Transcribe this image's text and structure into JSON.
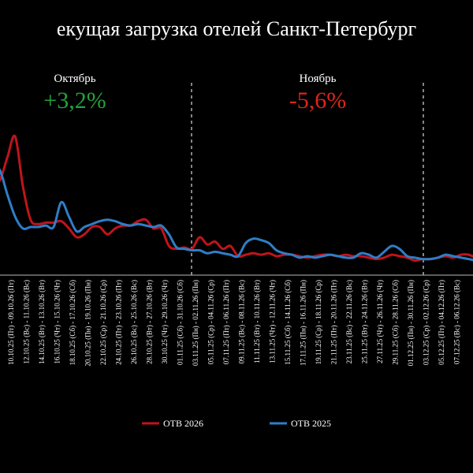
{
  "chart_data": {
    "type": "line",
    "title": "екущая загрузка отелей Санкт-Петербург",
    "xlabel": "",
    "ylabel": "",
    "ylim": [
      0,
      120
    ],
    "grid": false,
    "legend_position": "bottom",
    "annotations": [
      {
        "label": "Октябрь",
        "delta": "+3,2%",
        "color": "#22a33a"
      },
      {
        "label": "Ноябрь",
        "delta": "-5,6%",
        "color": "#e0241b"
      }
    ],
    "x_ticks": [
      "10.10.25 (Пт) - 09.10.26 (Пт)",
      "12.10.25 (Вс) - 11.10.26 (Вс)",
      "14.10.25 (Вт) - 13.10.26 (Вт)",
      "16.10.25 (Чт) - 15.10.26 (Чт)",
      "18.10.25 (Сб) - 17.10.26 (Сб)",
      "20.10.25 (Пн) - 19.10.26 (Пн)",
      "22.10.25 (Ср) - 21.10.26 (Ср)",
      "24.10.25 (Пт) - 23.10.26 (Пт)",
      "26.10.25 (Вс) - 25.10.26 (Вс)",
      "28.10.25 (Вт) - 27.10.26 (Вт)",
      "30.10.25 (Чт) - 29.10.26 (Чт)",
      "01.11.25 (Сб) - 31.10.26 (Сб)",
      "03.11.25 (Пн) - 02.11.26 (Пн)",
      "05.11.25 (Ср) - 04.11.26 (Ср)",
      "07.11.25 (Пт) - 06.11.26 (Пт)",
      "09.11.25 (Вс) - 08.11.26 (Вс)",
      "11.11.25 (Вт) - 10.11.26 (Вт)",
      "13.11.25 (Чт) - 12.11.26 (Чт)",
      "15.11.25 (Сб) - 14.11.26 (Сб)",
      "17.11.25 (Пн) - 16.11.26 (Пн)",
      "19.11.25 (Ср) - 18.11.26 (Ср)",
      "21.11.25 (Пт) - 20.11.26 (Пт)",
      "23.11.25 (Вс) - 22.11.26 (Вс)",
      "25.11.25 (Вт) - 24.11.26 (Вт)",
      "27.11.25 (Чт) - 26.11.26 (Чт)",
      "29.11.25 (Сб) - 28.11.26 (Сб)",
      "01.12.25 (Пн) - 30.11.26 (Пн)",
      "03.12.25 (Ср) - 02.12.26 (Ср)",
      "05.12.25 (Пт) - 04.12.26 (Пт)",
      "07.12.25 (Вс) - 06.12.26 (Вс)"
    ],
    "x": [
      0,
      1,
      2,
      3,
      4,
      5,
      6,
      7,
      8,
      9,
      10,
      11,
      12,
      13,
      14,
      15,
      16,
      17,
      18,
      19,
      20,
      21,
      22,
      23,
      24,
      25,
      26,
      27,
      28,
      29,
      30,
      31,
      32,
      33,
      34,
      35,
      36,
      37,
      38,
      39,
      40,
      41,
      42,
      43,
      44,
      45,
      46,
      47,
      48,
      49,
      50,
      51,
      52,
      53,
      54,
      55,
      56,
      57,
      58,
      59,
      60,
      61,
      62,
      63,
      64
    ],
    "series": [
      {
        "name": "ОТВ 2026",
        "color": "#c0141b",
        "values": [
          63,
          65,
          81,
          95,
          61,
          38,
          35,
          36,
          36,
          37,
          32,
          26,
          28,
          33,
          33,
          28,
          32,
          34,
          34,
          37,
          38,
          32,
          32,
          20,
          18,
          19,
          18,
          26,
          21,
          23,
          18,
          20,
          13,
          14,
          15,
          14,
          15,
          13,
          14,
          14,
          13,
          12,
          13,
          14,
          14,
          13,
          14,
          13,
          13,
          12,
          11,
          12,
          14,
          13,
          12,
          10,
          11,
          11,
          12,
          13,
          12,
          14,
          14,
          12,
          13
        ]
      },
      {
        "name": "ОТВ 2025",
        "color": "#2e7ec8",
        "values": [
          75,
          72,
          55,
          40,
          32,
          33,
          33,
          34,
          33,
          50,
          40,
          30,
          33,
          35,
          37,
          38,
          37,
          35,
          34,
          35,
          34,
          33,
          34,
          28,
          19,
          18,
          17,
          17,
          15,
          16,
          15,
          14,
          13,
          22,
          25,
          24,
          22,
          17,
          15,
          14,
          12,
          13,
          12,
          13,
          14,
          13,
          12,
          12,
          15,
          14,
          12,
          16,
          20,
          18,
          13,
          12,
          11,
          11,
          12,
          14,
          13,
          12,
          11,
          10,
          10
        ]
      }
    ]
  }
}
